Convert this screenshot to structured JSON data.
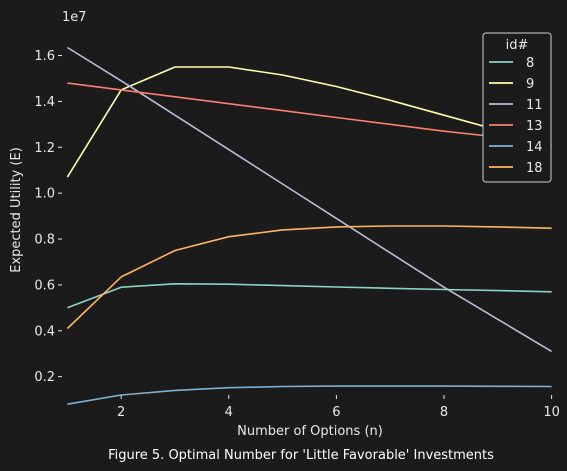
{
  "caption": "Figure 5. Optimal Number for 'Little Favorable' Investments",
  "chart_data": {
    "type": "line",
    "title": "",
    "xlabel": "Number of Options (n)",
    "ylabel": "Expected Utility (E)",
    "y_offset_label": "1e7",
    "xlim": [
      0.9,
      10.1
    ],
    "ylim": [
      0.12,
      1.72
    ],
    "xticks": [
      2,
      4,
      6,
      8,
      10
    ],
    "xtick_labels": [
      "2",
      "4",
      "6",
      "8",
      "10"
    ],
    "yticks": [
      0.2,
      0.4,
      0.6,
      0.8,
      1.0,
      1.2,
      1.4,
      1.6
    ],
    "ytick_labels": [
      "0.2",
      "0.4",
      "0.6",
      "0.8",
      "1.0",
      "1.2",
      "1.4",
      "1.6"
    ],
    "grid": false,
    "legend": {
      "title": "id#",
      "position": "top-right"
    },
    "x": [
      1,
      2,
      3,
      4,
      5,
      6,
      7,
      8,
      9,
      10
    ],
    "series": [
      {
        "name": "8",
        "color": "#8dd3c7",
        "values": [
          0.5,
          0.59,
          0.605,
          0.603,
          0.597,
          0.591,
          0.585,
          0.58,
          0.575,
          0.57
        ]
      },
      {
        "name": "9",
        "color": "#ffffb3",
        "values": [
          1.07,
          1.45,
          1.55,
          1.55,
          1.515,
          1.465,
          1.405,
          1.34,
          1.275,
          1.205
        ]
      },
      {
        "name": "11",
        "color": "#bebada",
        "values": [
          1.635,
          1.49,
          1.34,
          1.19,
          1.04,
          0.89,
          0.74,
          0.59,
          0.45,
          0.31
        ]
      },
      {
        "name": "13",
        "color": "#fb8072",
        "values": [
          1.48,
          1.45,
          1.42,
          1.39,
          1.36,
          1.33,
          1.3,
          1.27,
          1.245,
          1.215
        ]
      },
      {
        "name": "14",
        "color": "#80b1d3",
        "values": [
          0.08,
          0.12,
          0.14,
          0.152,
          0.157,
          0.159,
          0.159,
          0.159,
          0.158,
          0.157
        ]
      },
      {
        "name": "18",
        "color": "#fdb462",
        "values": [
          0.41,
          0.635,
          0.75,
          0.81,
          0.84,
          0.853,
          0.857,
          0.857,
          0.853,
          0.847
        ]
      }
    ]
  }
}
